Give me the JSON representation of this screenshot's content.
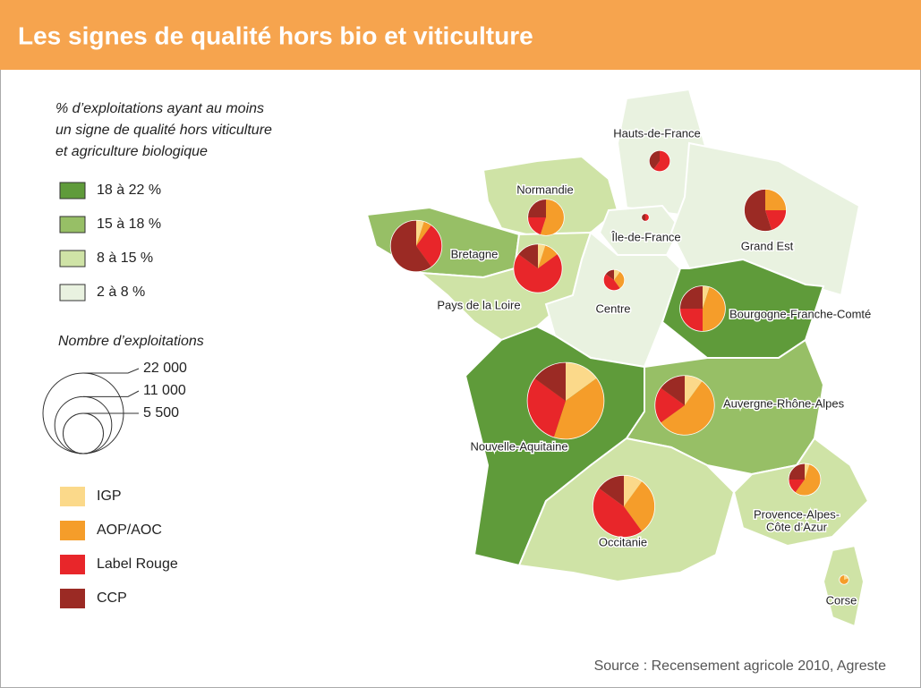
{
  "title": "Les signes de qualité hors bio et viticulture",
  "legend_classes": {
    "title": [
      "% d’exploitations ayant au moins",
      "un signe de qualité hors viticulture",
      "et agriculture biologique"
    ],
    "items": [
      {
        "label": "18 à 22 %",
        "color": "#5f9b3a"
      },
      {
        "label": "15 à 18 %",
        "color": "#97bf66"
      },
      {
        "label": "8 à 15 %",
        "color": "#cfe3a6"
      },
      {
        "label": "2 à 8 %",
        "color": "#e9f2e0"
      }
    ]
  },
  "legend_sizes": {
    "title": "Nombre d’exploitations",
    "ticks": [
      {
        "value": 22000,
        "label": "22 000"
      },
      {
        "value": 11000,
        "label": "11 000"
      },
      {
        "value": 5500,
        "label": "5 500"
      }
    ]
  },
  "legend_signs": [
    {
      "name": "IGP",
      "color": "#fbd98a"
    },
    {
      "name": "AOP/AOC",
      "color": "#f59d2a"
    },
    {
      "name": "Label Rouge",
      "color": "#e8262a"
    },
    {
      "name": "CCP",
      "color": "#9b2a24"
    }
  ],
  "regions": [
    {
      "label": [
        "Hauts-de-France"
      ],
      "color": "#e9f2e0",
      "size": 1500,
      "shares": [
        0,
        0,
        60,
        40
      ]
    },
    {
      "label": [
        "Normandie"
      ],
      "color": "#cfe3a6",
      "size": 4500,
      "shares": [
        0,
        55,
        20,
        25
      ]
    },
    {
      "label": [
        "Île-de-France"
      ],
      "color": "#e9f2e0",
      "size": 200,
      "shares": [
        0,
        0,
        50,
        50
      ]
    },
    {
      "label": [
        "Grand Est"
      ],
      "color": "#e9f2e0",
      "size": 6000,
      "shares": [
        0,
        25,
        20,
        55
      ]
    },
    {
      "label": [
        "Bretagne"
      ],
      "color": "#97bf66",
      "size": 9000,
      "shares": [
        5,
        5,
        30,
        60
      ]
    },
    {
      "label": [
        "Pays de la Loire"
      ],
      "color": "#cfe3a6",
      "size": 8000,
      "shares": [
        5,
        10,
        70,
        15
      ]
    },
    {
      "label": [
        "Centre"
      ],
      "color": "#e9f2e0",
      "size": 1500,
      "shares": [
        10,
        30,
        45,
        15
      ]
    },
    {
      "label": [
        "Bourgogne-Franche-Comté"
      ],
      "color": "#5f9b3a",
      "size": 7000,
      "shares": [
        5,
        45,
        25,
        25
      ]
    },
    {
      "label": [
        "Nouvelle-Aquitaine"
      ],
      "color": "#5f9b3a",
      "size": 20000,
      "shares": [
        15,
        40,
        30,
        15
      ]
    },
    {
      "label": [
        "Auvergne-Rhône-Alpes"
      ],
      "color": "#97bf66",
      "size": 12000,
      "shares": [
        10,
        55,
        20,
        15
      ]
    },
    {
      "label": [
        "Occitanie"
      ],
      "color": "#cfe3a6",
      "size": 13000,
      "shares": [
        10,
        30,
        45,
        15
      ]
    },
    {
      "label": [
        "Provence-Alpes-",
        "Côte d’Azur"
      ],
      "color": "#cfe3a6",
      "size": 3500,
      "shares": [
        5,
        55,
        15,
        25
      ]
    },
    {
      "label": [
        "Corse"
      ],
      "color": "#cfe3a6",
      "size": 300,
      "shares": [
        20,
        80,
        0,
        0
      ]
    }
  ],
  "source": "Source : Recensement agricole 2010, Agreste"
}
